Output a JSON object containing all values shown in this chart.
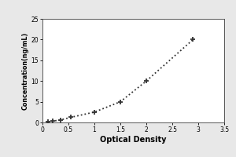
{
  "title": "",
  "xlabel": "Optical Density",
  "ylabel": "Concentration(ng/mL)",
  "x_data": [
    0.1,
    0.2,
    0.35,
    0.55,
    1.0,
    1.5,
    2.0,
    2.9
  ],
  "y_data": [
    0.16,
    0.31,
    0.63,
    1.25,
    2.5,
    5.0,
    10.0,
    20.0
  ],
  "xlim": [
    0,
    3.5
  ],
  "ylim": [
    0,
    25
  ],
  "xticks": [
    0,
    0.5,
    1.0,
    1.5,
    2.0,
    2.5,
    3.0,
    3.5
  ],
  "yticks": [
    0,
    5,
    10,
    15,
    20,
    25
  ],
  "line_color": "#333333",
  "marker_color": "#333333",
  "plot_bg_color": "#ffffff",
  "fig_bg_color": "#e8e8e8",
  "line_style": "dotted",
  "marker_style": "+"
}
